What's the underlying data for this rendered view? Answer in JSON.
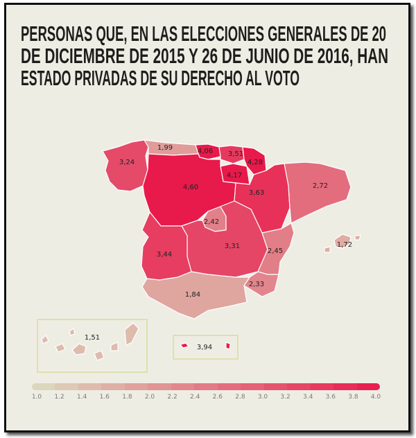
{
  "title_lines": [
    "PERSONAS QUE, EN LAS ELECCIONES GENERALES DE 20",
    "DE DICIEMBRE DE 2015 Y 26 DE JUNIO DE 2016, HAN",
    "ESTADO PRIVADAS DE SU DERECHO AL VOTO"
  ],
  "colors": {
    "low": "#dcdcc0",
    "high": "#e8194b",
    "background": "#eeede4",
    "inset_border": "#d6dd9c"
  },
  "scale": {
    "min": 1.0,
    "max": 4.0,
    "ticks": [
      "1.0",
      "1.2",
      "1.4",
      "1.6",
      "1.8",
      "2.0",
      "2.2",
      "2.4",
      "2.6",
      "2.8",
      "3.0",
      "3.2",
      "3.4",
      "3.6",
      "3.8",
      "4.0"
    ]
  },
  "regions": [
    {
      "id": "galicia",
      "label": "3,24",
      "value": 3.24
    },
    {
      "id": "asturias",
      "label": "1,99",
      "value": 1.99
    },
    {
      "id": "cantabria",
      "label": "4,06",
      "value": 4.06
    },
    {
      "id": "pais-vasco",
      "label": "3,51",
      "value": 3.51
    },
    {
      "id": "navarra",
      "label": "4,28",
      "value": 4.28
    },
    {
      "id": "la-rioja",
      "label": "4,17",
      "value": 4.17
    },
    {
      "id": "castilla-y-leon",
      "label": "4,60",
      "value": 4.6
    },
    {
      "id": "aragon",
      "label": "3,63",
      "value": 3.63
    },
    {
      "id": "cataluna",
      "label": "2,72",
      "value": 2.72
    },
    {
      "id": "madrid",
      "label": "2,42",
      "value": 2.42
    },
    {
      "id": "castilla-la-mancha",
      "label": "3,31",
      "value": 3.31
    },
    {
      "id": "extremadura",
      "label": "3,44",
      "value": 3.44
    },
    {
      "id": "comunidad-valenciana",
      "label": "2,45",
      "value": 2.45
    },
    {
      "id": "murcia",
      "label": "2,33",
      "value": 2.33
    },
    {
      "id": "andalucia",
      "label": "1,84",
      "value": 1.84
    },
    {
      "id": "baleares",
      "label": "1,72",
      "value": 1.72
    },
    {
      "id": "canarias",
      "label": "1,51",
      "value": 1.51
    },
    {
      "id": "ceuta-melilla",
      "label": "3,94",
      "value": 3.94
    }
  ]
}
